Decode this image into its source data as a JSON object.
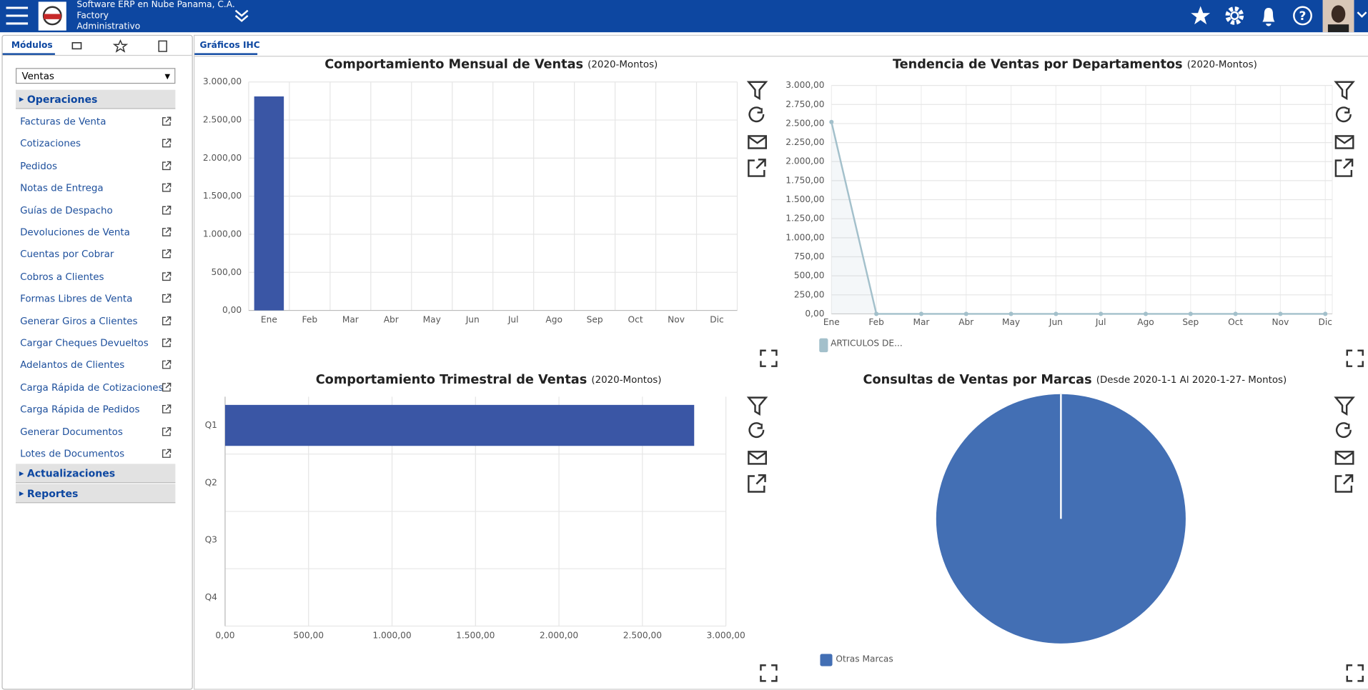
{
  "header": {
    "company": "Software ERP en Nube Panama, C.A.",
    "line2": "Factory",
    "line3": "Administrativo"
  },
  "sidebar": {
    "tab": "Módulos",
    "select": "Ventas",
    "sections": [
      {
        "title": "Operaciones",
        "items": [
          "Facturas de Venta",
          "Cotizaciones",
          "Pedidos",
          "Notas de Entrega",
          "Guías de Despacho",
          "Devoluciones de Venta",
          "Cuentas por Cobrar",
          "Cobros a Clientes",
          "Formas Libres de Venta",
          "Generar Giros a Clientes",
          "Cargar Cheques Devueltos",
          "Adelantos de Clientes",
          "Carga Rápida de Cotizaciones",
          "Carga Rápida de Pedidos",
          "Generar Documentos",
          "Lotes de Documentos"
        ]
      },
      {
        "title": "Actualizaciones"
      },
      {
        "title": "Reportes"
      }
    ]
  },
  "main_tab": "Gráficos IHC",
  "chart_data": [
    {
      "type": "bar",
      "title": "Comportamiento Mensual de Ventas",
      "subtitle": "(2020-Montos)",
      "categories": [
        "Ene",
        "Feb",
        "Mar",
        "Abr",
        "May",
        "Jun",
        "Jul",
        "Ago",
        "Sep",
        "Oct",
        "Nov",
        "Dic"
      ],
      "values": [
        2810,
        0,
        0,
        0,
        0,
        0,
        0,
        0,
        0,
        0,
        0,
        0
      ],
      "color": "#3a56a5",
      "ylim": [
        0,
        3000
      ],
      "yticks": [
        {
          "value": 0,
          "label": "0,00"
        },
        {
          "value": 500,
          "label": "500,00"
        },
        {
          "value": 1000,
          "label": "1.000,00"
        },
        {
          "value": 1500,
          "label": "1.500,00"
        },
        {
          "value": 2000,
          "label": "2.000,00"
        },
        {
          "value": 2500,
          "label": "2.500,00"
        },
        {
          "value": 3000,
          "label": "3.000,00"
        }
      ],
      "grid": true
    },
    {
      "type": "line",
      "title": "Tendencia de Ventas por Departamentos",
      "subtitle": "(2020-Montos)",
      "categories": [
        "Ene",
        "Feb",
        "Mar",
        "Abr",
        "May",
        "Jun",
        "Jul",
        "Ago",
        "Sep",
        "Oct",
        "Nov",
        "Dic"
      ],
      "series": [
        {
          "name": "ARTICULOS DE...",
          "color": "#a3c0cb",
          "values": [
            2520,
            0,
            0,
            0,
            0,
            0,
            0,
            0,
            0,
            0,
            0,
            0
          ]
        }
      ],
      "ylim": [
        0,
        3000
      ],
      "yticks": [
        {
          "value": 0,
          "label": "0,00"
        },
        {
          "value": 250,
          "label": "250,00"
        },
        {
          "value": 500,
          "label": "500,00"
        },
        {
          "value": 750,
          "label": "750,00"
        },
        {
          "value": 1000,
          "label": "1.000,00"
        },
        {
          "value": 1250,
          "label": "1.250,00"
        },
        {
          "value": 1500,
          "label": "1.500,00"
        },
        {
          "value": 1750,
          "label": "1.750,00"
        },
        {
          "value": 2000,
          "label": "2.000,00"
        },
        {
          "value": 2250,
          "label": "2.250,00"
        },
        {
          "value": 2500,
          "label": "2.500,00"
        },
        {
          "value": 2750,
          "label": "2.750,00"
        },
        {
          "value": 3000,
          "label": "3.000,00"
        }
      ],
      "grid": true
    },
    {
      "type": "hbar",
      "title": "Comportamiento Trimestral de Ventas",
      "subtitle": "(2020-Montos)",
      "categories": [
        "Q1",
        "Q2",
        "Q3",
        "Q4"
      ],
      "values": [
        2810,
        0,
        0,
        0
      ],
      "color": "#3a56a5",
      "xlim": [
        0,
        3000
      ],
      "xticks": [
        {
          "value": 0,
          "label": "0,00"
        },
        {
          "value": 500,
          "label": "500,00"
        },
        {
          "value": 1000,
          "label": "1.000,00"
        },
        {
          "value": 1500,
          "label": "1.500,00"
        },
        {
          "value": 2000,
          "label": "2.000,00"
        },
        {
          "value": 2500,
          "label": "2.500,00"
        },
        {
          "value": 3000,
          "label": "3.000,00"
        }
      ],
      "grid": true
    },
    {
      "type": "pie",
      "title": "Consultas de Ventas por Marcas",
      "subtitle": "(Desde 2020-1-1 Al 2020-1-27- Montos)",
      "categories": [
        "Otras Marcas"
      ],
      "values": [
        100
      ],
      "colors": [
        "#436fb4"
      ]
    }
  ]
}
